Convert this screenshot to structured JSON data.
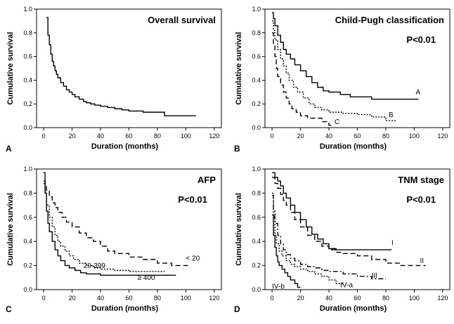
{
  "figure": {
    "panels_meta": "4 Kaplan-Meier survival panels"
  },
  "chart_data": [
    {
      "type": "line",
      "panel_letter": "A",
      "title": "Overall survival",
      "pvalue": "",
      "xlabel": "Duration (months)",
      "ylabel": "Cumulative survival",
      "xlim": [
        -5,
        125
      ],
      "ylim": [
        0,
        1.0
      ],
      "xticks": [
        "0",
        "20",
        "40",
        "60",
        "80",
        "100",
        "120"
      ],
      "yticks": [
        "0.0",
        "0.2",
        "0.4",
        "0.6",
        "0.8",
        "1.0"
      ],
      "series": [
        {
          "name": "",
          "label": "",
          "dash": "solid",
          "x": [
            2,
            3,
            4,
            5,
            6,
            7,
            8,
            9,
            10,
            12,
            14,
            16,
            18,
            20,
            22,
            25,
            28,
            30,
            33,
            36,
            40,
            45,
            50,
            55,
            60,
            70,
            85,
            107
          ],
          "y": [
            0.93,
            0.78,
            0.7,
            0.62,
            0.56,
            0.52,
            0.48,
            0.45,
            0.42,
            0.38,
            0.35,
            0.32,
            0.3,
            0.28,
            0.26,
            0.24,
            0.22,
            0.21,
            0.2,
            0.19,
            0.18,
            0.17,
            0.16,
            0.15,
            0.14,
            0.13,
            0.1,
            0.1
          ]
        }
      ]
    },
    {
      "type": "line",
      "panel_letter": "B",
      "title": "Child-Pugh classification",
      "pvalue": "P<0.01",
      "xlabel": "Duration (months)",
      "ylabel": "Cumulative survival",
      "xlim": [
        -5,
        125
      ],
      "ylim": [
        0,
        1.0
      ],
      "xticks": [
        "0",
        "20",
        "40",
        "60",
        "80",
        "100",
        "120"
      ],
      "yticks": [
        "0.0",
        "0.2",
        "0.4",
        "0.6",
        "0.8",
        "1.0"
      ],
      "series": [
        {
          "name": "A",
          "label": "A",
          "dash": "solid",
          "x": [
            0,
            1,
            2,
            4,
            6,
            8,
            10,
            13,
            16,
            20,
            24,
            28,
            32,
            36,
            40,
            48,
            55,
            70,
            85,
            103
          ],
          "y": [
            0.97,
            0.92,
            0.86,
            0.78,
            0.72,
            0.66,
            0.62,
            0.58,
            0.53,
            0.48,
            0.43,
            0.38,
            0.34,
            0.31,
            0.3,
            0.28,
            0.26,
            0.24,
            0.24,
            0.24
          ]
        },
        {
          "name": "B",
          "label": "B",
          "dash": "dotted",
          "x": [
            0,
            1,
            2,
            4,
            6,
            8,
            10,
            12,
            15,
            18,
            22,
            26,
            30,
            35,
            40,
            50,
            60,
            70,
            80,
            88
          ],
          "y": [
            0.9,
            0.82,
            0.74,
            0.66,
            0.58,
            0.52,
            0.46,
            0.4,
            0.34,
            0.3,
            0.25,
            0.2,
            0.17,
            0.15,
            0.13,
            0.12,
            0.11,
            0.09,
            0.06,
            0.06
          ]
        },
        {
          "name": "C",
          "label": "C",
          "dash": "dashed",
          "x": [
            0,
            1,
            2,
            3,
            4,
            6,
            8,
            10,
            12,
            14,
            17,
            20,
            25,
            30,
            35,
            40,
            42
          ],
          "y": [
            0.8,
            0.7,
            0.6,
            0.5,
            0.43,
            0.36,
            0.3,
            0.25,
            0.2,
            0.16,
            0.13,
            0.1,
            0.08,
            0.08,
            0.05,
            0.02,
            0.02
          ]
        }
      ]
    },
    {
      "type": "line",
      "panel_letter": "C",
      "title": "AFP",
      "pvalue": "P<0.01",
      "xlabel": "Duration (months)",
      "ylabel": "Cumulative survival",
      "xlim": [
        -5,
        125
      ],
      "ylim": [
        0,
        1.0
      ],
      "xticks": [
        "0",
        "20",
        "40",
        "60",
        "80",
        "100",
        "120"
      ],
      "yticks": [
        "0.0",
        "0.2",
        "0.4",
        "0.6",
        "0.8",
        "1.0"
      ],
      "series": [
        {
          "name": "< 20",
          "label": "< 20",
          "dash": "dashed",
          "x": [
            0,
            1,
            2,
            4,
            6,
            8,
            10,
            13,
            16,
            20,
            25,
            30,
            35,
            40,
            45,
            50,
            60,
            70,
            80,
            90,
            102
          ],
          "y": [
            0.9,
            0.86,
            0.82,
            0.77,
            0.72,
            0.68,
            0.64,
            0.6,
            0.56,
            0.52,
            0.47,
            0.43,
            0.4,
            0.36,
            0.32,
            0.3,
            0.27,
            0.25,
            0.22,
            0.2,
            0.2
          ]
        },
        {
          "name": "20-399",
          "label": "20-399",
          "dash": "dotted",
          "x": [
            0,
            1,
            2,
            4,
            6,
            8,
            10,
            12,
            15,
            18,
            21,
            25,
            30,
            35,
            40,
            50,
            60,
            70,
            80,
            85
          ],
          "y": [
            0.88,
            0.8,
            0.7,
            0.6,
            0.52,
            0.45,
            0.4,
            0.36,
            0.32,
            0.28,
            0.25,
            0.22,
            0.2,
            0.18,
            0.17,
            0.16,
            0.15,
            0.15,
            0.15,
            0.15
          ]
        },
        {
          "name": "≥ 400",
          "label": "≥ 400",
          "dash": "solid",
          "x": [
            0,
            1,
            2,
            3,
            4,
            6,
            8,
            10,
            12,
            15,
            18,
            22,
            26,
            30,
            40,
            60,
            80,
            93
          ],
          "y": [
            0.97,
            0.8,
            0.65,
            0.55,
            0.48,
            0.4,
            0.33,
            0.28,
            0.24,
            0.2,
            0.18,
            0.16,
            0.14,
            0.13,
            0.12,
            0.12,
            0.12,
            0.12
          ]
        }
      ]
    },
    {
      "type": "line",
      "panel_letter": "D",
      "title": "TNM stage",
      "pvalue": "P<0.01",
      "xlabel": "Duration (months)",
      "ylabel": "Cumulative survival",
      "xlim": [
        -5,
        125
      ],
      "ylim": [
        0,
        1.0
      ],
      "xticks": [
        "0",
        "20",
        "40",
        "60",
        "80",
        "100",
        "120"
      ],
      "yticks": [
        "0.0",
        "0.2",
        "0.4",
        "0.6",
        "0.8",
        "1.0"
      ],
      "series": [
        {
          "name": "I",
          "label": "I",
          "dash": "solid",
          "x": [
            0,
            2,
            4,
            6,
            8,
            10,
            13,
            16,
            20,
            24,
            28,
            32,
            36,
            40,
            45,
            60,
            70,
            84
          ],
          "y": [
            0.97,
            0.93,
            0.9,
            0.86,
            0.8,
            0.76,
            0.7,
            0.64,
            0.58,
            0.52,
            0.46,
            0.42,
            0.38,
            0.34,
            0.33,
            0.33,
            0.33,
            0.33
          ]
        },
        {
          "name": "II",
          "label": "II",
          "dash": "dashed",
          "x": [
            0,
            2,
            4,
            6,
            8,
            10,
            13,
            16,
            20,
            25,
            30,
            35,
            40,
            45,
            50,
            60,
            70,
            80,
            90,
            100,
            108
          ],
          "y": [
            0.93,
            0.88,
            0.84,
            0.79,
            0.74,
            0.7,
            0.64,
            0.58,
            0.52,
            0.45,
            0.4,
            0.36,
            0.33,
            0.31,
            0.3,
            0.28,
            0.25,
            0.22,
            0.2,
            0.2,
            0.2
          ]
        },
        {
          "name": "III",
          "label": "III",
          "dash": "dashdot",
          "x": [
            0,
            1,
            2,
            4,
            6,
            8,
            10,
            13,
            16,
            20,
            25,
            30,
            35,
            40,
            50,
            60,
            70,
            80
          ],
          "y": [
            0.78,
            0.65,
            0.55,
            0.45,
            0.38,
            0.33,
            0.29,
            0.26,
            0.24,
            0.21,
            0.19,
            0.18,
            0.16,
            0.15,
            0.13,
            0.11,
            0.09,
            0.09
          ]
        },
        {
          "name": "IV-a",
          "label": "IV-a",
          "dash": "dotted",
          "x": [
            0,
            1,
            2,
            3,
            5,
            7,
            10,
            13,
            16,
            20,
            25,
            30,
            35,
            40,
            45,
            50
          ],
          "y": [
            0.8,
            0.6,
            0.45,
            0.38,
            0.32,
            0.28,
            0.24,
            0.21,
            0.19,
            0.17,
            0.15,
            0.13,
            0.11,
            0.08,
            0.05,
            0.05
          ]
        },
        {
          "name": "IV-b",
          "label": "IV-b",
          "dash": "solid",
          "x": [
            0,
            1,
            2,
            3,
            4,
            5,
            7,
            9,
            11,
            13,
            16,
            18,
            20
          ],
          "y": [
            0.62,
            0.45,
            0.35,
            0.28,
            0.23,
            0.2,
            0.17,
            0.14,
            0.11,
            0.08,
            0.05,
            0.02,
            0.02
          ]
        }
      ]
    }
  ]
}
